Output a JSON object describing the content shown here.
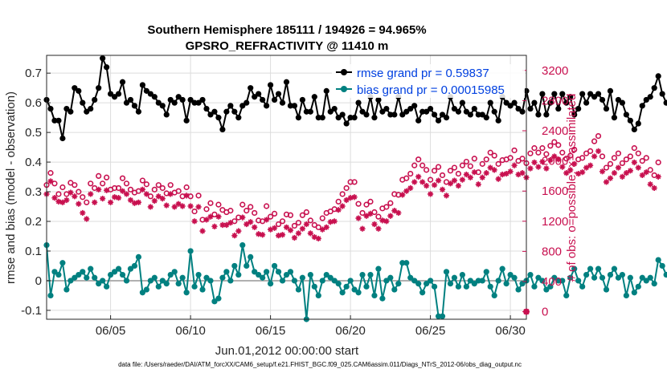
{
  "chart_data": {
    "type": "line",
    "title": "Southern Hemisphere 185111 / 194926 = 94.965%",
    "subtitle": "GPSRO_REFRACTIVITY @ 11410 m",
    "xlabel": "Jun.01,2012 00:00:00 start",
    "ylabel_left": "rmse and bias (model - observation)",
    "ylabel_right": "# of obs: o=possible; ×=assimilated",
    "x_ticks": [
      "06/05",
      "06/10",
      "06/15",
      "06/20",
      "06/25",
      "06/30"
    ],
    "x_tick_days": [
      5,
      10,
      15,
      20,
      25,
      30
    ],
    "x_range_days": [
      1,
      31
    ],
    "ylim_left": [
      -0.13,
      0.76
    ],
    "y_ticks_left": [
      "0.7",
      "0.6",
      "0.5",
      "0.4",
      "0.3",
      "0.2",
      "0.1",
      "0",
      "-0.1"
    ],
    "y_tick_values_left": [
      0.7,
      0.6,
      0.5,
      0.4,
      0.3,
      0.2,
      0.1,
      0,
      -0.1
    ],
    "ylim_right": [
      -100,
      3400
    ],
    "y_ticks_right": [
      "3200",
      "2800",
      "2400",
      "2000",
      "1600",
      "1200",
      "800",
      "400",
      "0"
    ],
    "y_tick_values_right": [
      3200,
      2800,
      2400,
      2000,
      1600,
      1200,
      800,
      400,
      0
    ],
    "legend": {
      "rmse_label": "rmse grand pr = 0.59837",
      "bias_label": "bias grand pr = 0.00015985",
      "position": "top-right"
    },
    "series": [
      {
        "name": "rmse",
        "axis": "left",
        "color": "#000000",
        "marker": "filled-circle",
        "x_start_day": 1.0,
        "x_step_days": 0.25,
        "values": [
          0.61,
          0.58,
          0.54,
          0.54,
          0.48,
          0.58,
          0.57,
          0.65,
          0.64,
          0.6,
          0.57,
          0.58,
          0.61,
          0.65,
          0.75,
          0.72,
          0.63,
          0.62,
          0.63,
          0.67,
          0.6,
          0.61,
          0.59,
          0.57,
          0.66,
          0.64,
          0.63,
          0.62,
          0.6,
          0.59,
          0.56,
          0.61,
          0.6,
          0.62,
          0.61,
          0.54,
          0.61,
          0.6,
          0.6,
          0.61,
          0.58,
          0.56,
          0.57,
          0.55,
          0.51,
          0.57,
          0.59,
          0.57,
          0.55,
          0.59,
          0.6,
          0.65,
          0.62,
          0.63,
          0.61,
          0.59,
          0.66,
          0.61,
          0.63,
          0.6,
          0.67,
          0.59,
          0.59,
          0.55,
          0.61,
          0.57,
          0.57,
          0.62,
          0.55,
          0.55,
          0.64,
          0.57,
          0.58,
          0.55,
          0.56,
          0.53,
          0.55,
          0.55,
          0.6,
          0.57,
          0.56,
          0.62,
          0.55,
          0.61,
          0.57,
          0.58,
          0.56,
          0.56,
          0.62,
          0.56,
          0.57,
          0.58,
          0.59,
          0.54,
          0.57,
          0.57,
          0.58,
          0.56,
          0.54,
          0.56,
          0.55,
          0.62,
          0.58,
          0.57,
          0.6,
          0.57,
          0.56,
          0.58,
          0.56,
          0.56,
          0.55,
          0.6,
          0.57,
          0.54,
          0.62,
          0.6,
          0.59,
          0.6,
          0.58,
          0.57,
          0.64,
          0.58,
          0.6,
          0.56,
          0.63,
          0.56,
          0.6,
          0.63,
          0.58,
          0.63,
          0.6,
          0.62,
          0.56,
          0.58,
          0.63,
          0.6,
          0.63,
          0.62,
          0.63,
          0.61,
          0.58,
          0.64,
          0.55,
          0.61,
          0.6,
          0.56,
          0.54,
          0.51,
          0.53,
          0.59,
          0.61,
          0.62,
          0.65,
          0.69,
          0.63,
          0.6
        ]
      },
      {
        "name": "bias",
        "axis": "left",
        "color": "#008080",
        "marker": "filled-circle",
        "x_start_day": 1.0,
        "x_step_days": 0.25,
        "values": [
          0.12,
          -0.05,
          0.03,
          0.02,
          0.06,
          -0.03,
          0.0,
          0.01,
          0.02,
          0.03,
          0.01,
          0.04,
          0.01,
          -0.01,
          0.0,
          -0.02,
          0.02,
          0.03,
          0.04,
          0.02,
          0.0,
          0.04,
          0.05,
          0.08,
          -0.04,
          -0.03,
          0.0,
          0.01,
          -0.02,
          0.0,
          -0.01,
          0.02,
          0.03,
          -0.01,
          0.01,
          -0.04,
          0.1,
          -0.02,
          0.02,
          -0.03,
          0.01,
          0.0,
          -0.07,
          -0.06,
          0.01,
          0.03,
          0.0,
          0.05,
          0.02,
          0.12,
          0.05,
          0.08,
          0.03,
          0.02,
          0.01,
          0.03,
          -0.01,
          0.05,
          0.03,
          0.0,
          0.02,
          0.03,
          0.0,
          -0.03,
          0.01,
          -0.13,
          0.02,
          -0.02,
          -0.05,
          0.0,
          0.02,
          0.01,
          0.0,
          -0.01,
          -0.04,
          -0.02,
          0.0,
          -0.03,
          -0.04,
          0.02,
          -0.02,
          0.02,
          -0.05,
          0.04,
          -0.06,
          0.0,
          0.01,
          -0.03,
          -0.01,
          0.06,
          0.06,
          0.01,
          0.0,
          -0.01,
          -0.04,
          -0.01,
          0.0,
          -0.02,
          -0.12,
          -0.12,
          0.03,
          -0.01,
          0.01,
          -0.02,
          0.02,
          -0.02,
          0.0,
          -0.01,
          0.0,
          0.0,
          0.03,
          -0.02,
          -0.05,
          0.0,
          0.04,
          -0.01,
          0.02,
          0.01,
          -0.03,
          -0.01,
          0.0,
          0.02,
          -0.02,
          0.01,
          0.0,
          -0.03,
          -0.02,
          0.01,
          0.0,
          0.0,
          -0.05,
          0.01,
          0.04,
          0.0,
          -0.02,
          0.02,
          0.04,
          0.01,
          0.04,
          0.01,
          -0.03,
          0.02,
          0.04,
          0.01,
          0.02,
          -0.05,
          0.01,
          -0.04,
          -0.02,
          0.01,
          0.0,
          0.01,
          -0.01,
          0.07,
          0.05,
          0.02
        ]
      },
      {
        "name": "possible",
        "axis": "right",
        "color": "#c8104f",
        "marker": "open-circle",
        "x_start_day": 1.0,
        "x_step_days": 0.25,
        "values": [
          1680,
          1840,
          1700,
          1560,
          1650,
          1560,
          1710,
          1680,
          1590,
          1520,
          1450,
          1700,
          1640,
          1800,
          1700,
          1780,
          1620,
          1640,
          1640,
          1770,
          1700,
          1620,
          1580,
          1600,
          1740,
          1690,
          1530,
          1620,
          1680,
          1640,
          1570,
          1680,
          1580,
          1600,
          1530,
          1650,
          1530,
          1330,
          1540,
          1220,
          1360,
          1440,
          1290,
          1420,
          1350,
          1320,
          1340,
          1200,
          1250,
          1420,
          1340,
          1390,
          1310,
          1210,
          1200,
          1400,
          1260,
          1300,
          1160,
          1200,
          1290,
          1280,
          1140,
          1180,
          1280,
          1320,
          1210,
          1150,
          1120,
          1240,
          1310,
          1330,
          1360,
          1460,
          1560,
          1640,
          1720,
          1720,
          1430,
          1310,
          1420,
          1460,
          1320,
          1260,
          1370,
          1390,
          1440,
          1560,
          1550,
          1750,
          1770,
          1830,
          1940,
          2020,
          1940,
          1880,
          1750,
          1870,
          1920,
          1810,
          1720,
          1870,
          1910,
          1830,
          1940,
          1990,
          1930,
          2030,
          1850,
          1960,
          2020,
          2110,
          2070,
          1960,
          2010,
          2020,
          2040,
          2140,
          2000,
          2030,
          1970,
          2100,
          2170,
          2110,
          2170,
          2090,
          2200,
          2250,
          2210,
          2110,
          2030,
          2070,
          2150,
          2020,
          2040,
          2100,
          2130,
          2260,
          2330,
          2060,
          1910,
          1960,
          2040,
          2100,
          1970,
          2020,
          2060,
          2170,
          2100,
          2000,
          2040,
          1880,
          1810,
          1980
        ]
      },
      {
        "name": "assimilated",
        "axis": "right",
        "color": "#c8104f",
        "marker": "asterisk",
        "x_start_day": 1.0,
        "x_step_days": 0.25,
        "values": [
          1560,
          1730,
          1510,
          1460,
          1450,
          1480,
          1580,
          1530,
          1430,
          1310,
          1230,
          1560,
          1450,
          1620,
          1500,
          1610,
          1450,
          1520,
          1510,
          1600,
          1560,
          1480,
          1440,
          1450,
          1620,
          1560,
          1390,
          1470,
          1530,
          1500,
          1410,
          1560,
          1390,
          1430,
          1400,
          1540,
          1400,
          1200,
          1390,
          1070,
          1220,
          1260,
          1130,
          1260,
          1150,
          1150,
          1180,
          1010,
          1070,
          1250,
          1160,
          1190,
          1120,
          1030,
          1020,
          1220,
          1090,
          1110,
          1010,
          1020,
          1120,
          1080,
          980,
          1040,
          1100,
          1160,
          1040,
          990,
          970,
          1090,
          1120,
          1190,
          1200,
          1350,
          1400,
          1480,
          1510,
          1520,
          1240,
          1100,
          1270,
          1300,
          1160,
          1100,
          1210,
          1200,
          1270,
          1340,
          1310,
          1550,
          1600,
          1640,
          1720,
          1790,
          1720,
          1670,
          1560,
          1680,
          1740,
          1620,
          1540,
          1700,
          1740,
          1670,
          1750,
          1820,
          1780,
          1850,
          1690,
          1780,
          1840,
          1910,
          1880,
          1760,
          1820,
          1830,
          1860,
          1940,
          1820,
          1840,
          1780,
          1900,
          1980,
          1920,
          1990,
          1900,
          2010,
          2060,
          2020,
          1920,
          1840,
          1880,
          1960,
          1830,
          1850,
          1910,
          1940,
          2060,
          2130,
          1860,
          1720,
          1770,
          1840,
          1910,
          1790,
          1840,
          1870,
          1980,
          1910,
          1810,
          1850,
          1690,
          1640,
          1790
        ]
      }
    ]
  },
  "footer": {
    "data_file": "data file: /Users/raeder/DAI/ATM_forcXX/CAM6_setup/f.e21.FHIST_BGC.f09_025.CAM6assim.011/Diags_NTrS_2012-06/obs_diag_output.nc"
  }
}
